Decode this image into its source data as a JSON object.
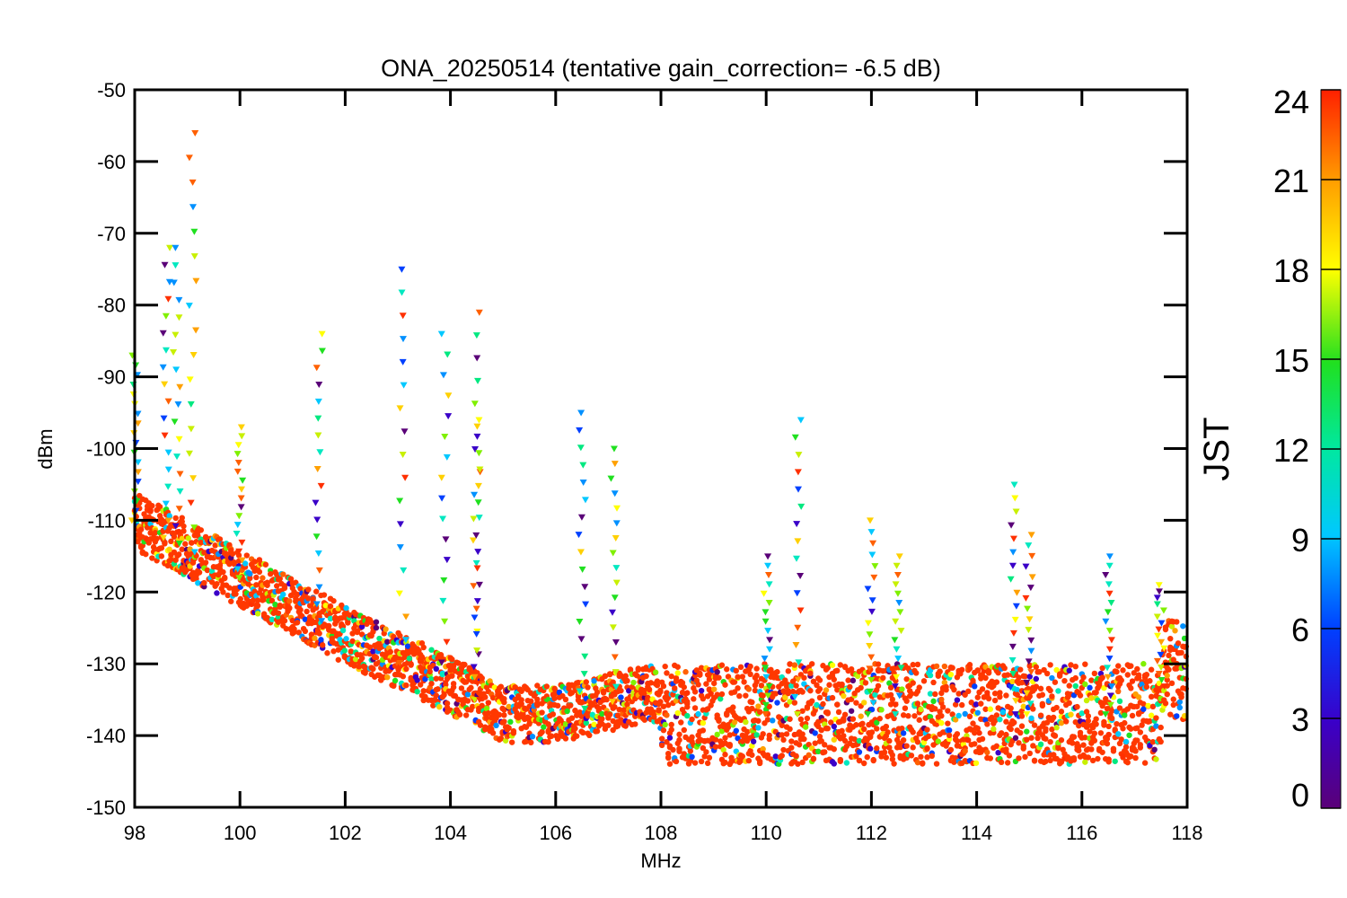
{
  "chart_data": {
    "type": "scatter",
    "title": "ONA_20250514 (tentative gain_correction= -6.5 dB)",
    "xlabel": "MHz",
    "ylabel": "dBm",
    "xlim": [
      98,
      118
    ],
    "ylim": [
      -150,
      -50
    ],
    "xticks": [
      98,
      100,
      102,
      104,
      106,
      108,
      110,
      112,
      114,
      116,
      118
    ],
    "yticks": [
      -50,
      -60,
      -70,
      -80,
      -90,
      -100,
      -110,
      -120,
      -130,
      -140,
      -150
    ],
    "grid": false,
    "marker": "downward-triangle / asterisk",
    "colorbar": {
      "label": "JST",
      "range": [
        0,
        24
      ],
      "ticks": [
        0,
        3,
        6,
        9,
        12,
        15,
        18,
        21,
        24
      ],
      "colormap": "rainbow (purple-blue-cyan-green-yellow-orange-red)"
    },
    "noise_floor": {
      "description_points_mhz_dbm": [
        [
          98.0,
          -110
        ],
        [
          100.0,
          -118
        ],
        [
          102.0,
          -126
        ],
        [
          104.0,
          -133
        ],
        [
          105.0,
          -137
        ],
        [
          106.0,
          -137
        ],
        [
          107.9,
          -134
        ],
        [
          108.0,
          -137
        ],
        [
          112.0,
          -137
        ],
        [
          117.4,
          -137
        ],
        [
          117.6,
          -131
        ],
        [
          118.0,
          -131
        ]
      ]
    },
    "peaks": [
      {
        "mhz": 98.0,
        "dbm": -87
      },
      {
        "mhz": 98.6,
        "dbm": -72
      },
      {
        "mhz": 98.8,
        "dbm": -72
      },
      {
        "mhz": 99.1,
        "dbm": -56
      },
      {
        "mhz": 100.0,
        "dbm": -97
      },
      {
        "mhz": 101.5,
        "dbm": -84
      },
      {
        "mhz": 103.1,
        "dbm": -75
      },
      {
        "mhz": 103.9,
        "dbm": -84
      },
      {
        "mhz": 104.5,
        "dbm": -81
      },
      {
        "mhz": 104.5,
        "dbm": -96
      },
      {
        "mhz": 106.5,
        "dbm": -95
      },
      {
        "mhz": 107.1,
        "dbm": -100
      },
      {
        "mhz": 110.6,
        "dbm": -96
      },
      {
        "mhz": 110.0,
        "dbm": -115
      },
      {
        "mhz": 112.0,
        "dbm": -110
      },
      {
        "mhz": 112.5,
        "dbm": -115
      },
      {
        "mhz": 114.7,
        "dbm": -105
      },
      {
        "mhz": 115.0,
        "dbm": -112
      },
      {
        "mhz": 116.5,
        "dbm": -115
      },
      {
        "mhz": 117.5,
        "dbm": -119
      }
    ]
  }
}
